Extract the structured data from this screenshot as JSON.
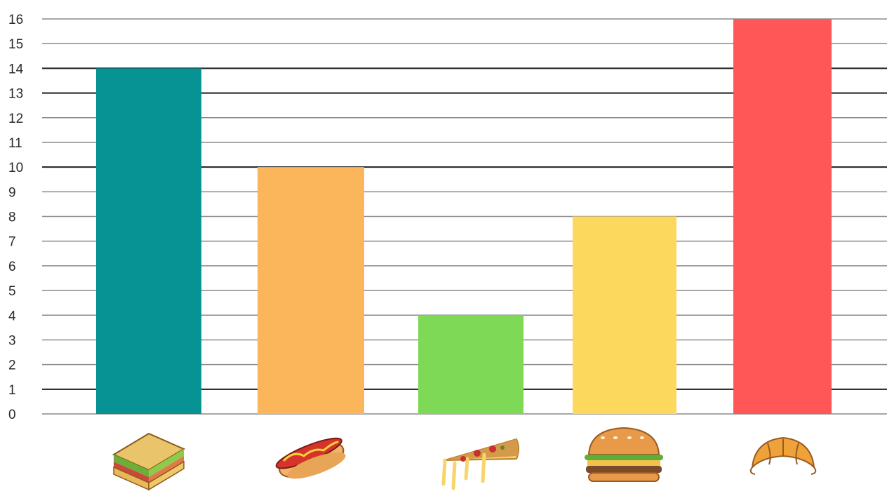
{
  "chart_data": {
    "type": "bar",
    "title": "",
    "xlabel": "",
    "ylabel": "",
    "ylim": [
      0,
      16
    ],
    "yticks": [
      0,
      1,
      2,
      3,
      4,
      5,
      6,
      7,
      8,
      9,
      10,
      11,
      12,
      13,
      14,
      15,
      16
    ],
    "grid": true,
    "legend": "none",
    "categories": [
      "sandwich",
      "hot dog",
      "pizza",
      "burger",
      "croissant"
    ],
    "category_icons": [
      "sandwich-icon",
      "hot-dog-icon",
      "pizza-icon",
      "burger-icon",
      "croissant-icon"
    ],
    "values": [
      14,
      10,
      4,
      8,
      16
    ],
    "bar_colors": [
      "#079294",
      "#FBB65C",
      "#7ED957",
      "#FCD95C",
      "#FF5757"
    ]
  }
}
